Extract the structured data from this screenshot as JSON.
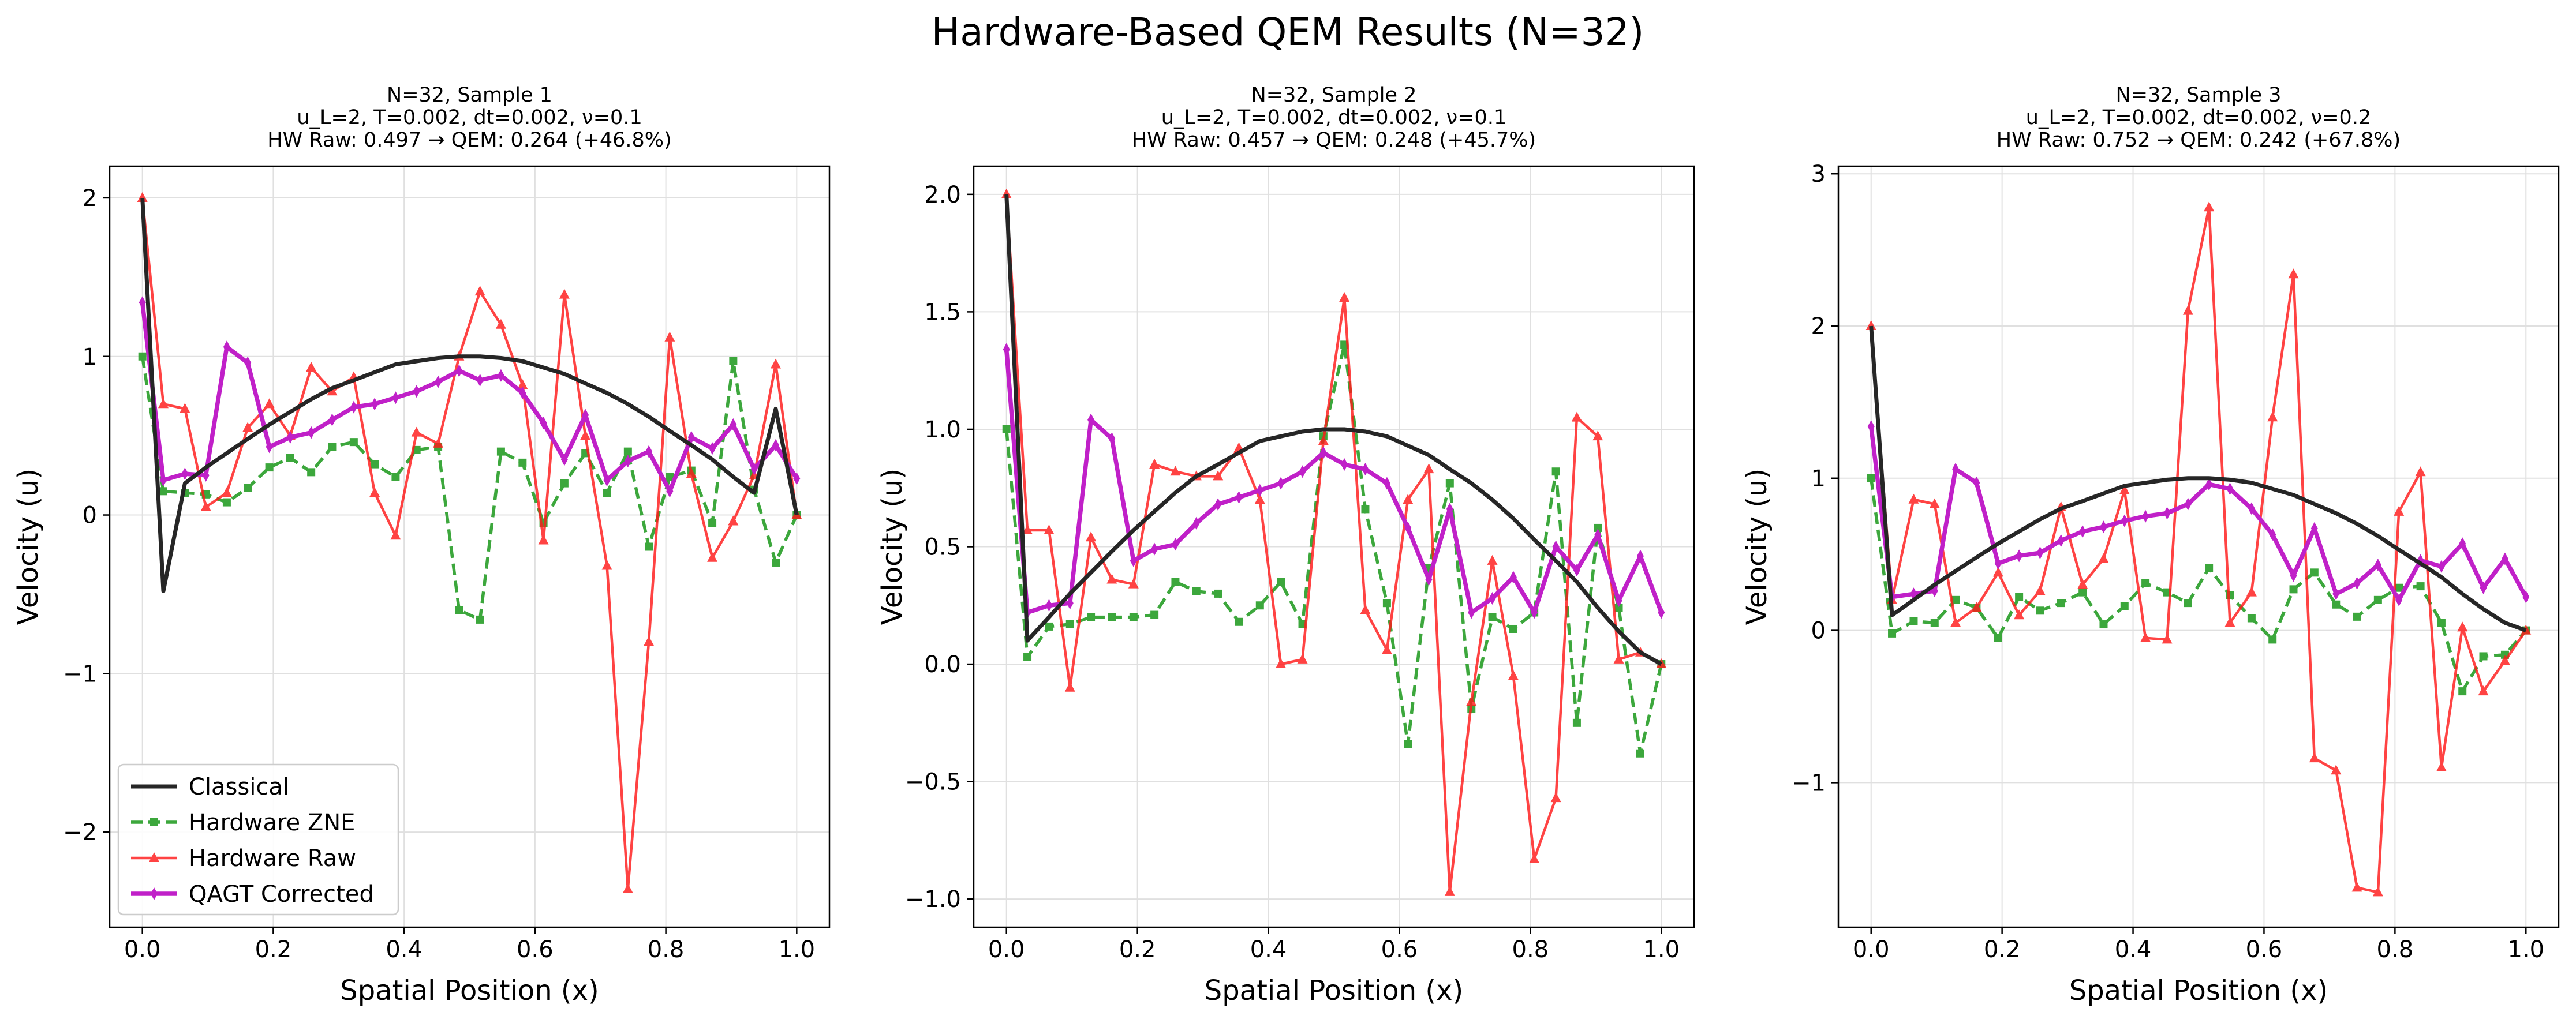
{
  "figure": {
    "suptitle": "Hardware-Based QEM Results (N=32)",
    "colors": {
      "classical": "#262626",
      "zne": "#2ca02c",
      "raw": "#ff1a1a",
      "qagt": "#c020c8",
      "grid": "#e0e0e0",
      "axis": "#000000"
    }
  },
  "legend": {
    "placement": "lower left (Sample 1)",
    "entries": [
      "Classical",
      "Hardware ZNE",
      "Hardware Raw",
      "QAGT Corrected"
    ]
  },
  "chart_data": [
    {
      "type": "line",
      "title_lines": [
        "N=32, Sample 1",
        "u_L=2, T=0.002, dt=0.002, ν=0.1",
        "HW Raw: 0.497 → QEM: 0.264 (+46.8%)"
      ],
      "xlabel": "Spatial Position (x)",
      "ylabel": "Velocity (u)",
      "xlim": [
        -0.05,
        1.05
      ],
      "ylim": [
        -2.6,
        2.2
      ],
      "xticks": [
        0.0,
        0.2,
        0.4,
        0.6,
        0.8,
        1.0
      ],
      "xtick_labels": [
        "0.0",
        "0.2",
        "0.4",
        "0.6",
        "0.8",
        "1.0"
      ],
      "yticks": [
        -2,
        -1,
        0,
        1,
        2
      ],
      "ytick_labels": [
        "−2",
        "−1",
        "0",
        "1",
        "2"
      ],
      "grid": true,
      "x": [
        0.0,
        0.032,
        0.065,
        0.097,
        0.129,
        0.161,
        0.194,
        0.226,
        0.258,
        0.29,
        0.323,
        0.355,
        0.387,
        0.419,
        0.452,
        0.484,
        0.516,
        0.548,
        0.581,
        0.613,
        0.645,
        0.677,
        0.71,
        0.742,
        0.774,
        0.806,
        0.839,
        0.871,
        0.903,
        0.935,
        0.968,
        1.0
      ],
      "series": [
        {
          "name": "Classical",
          "values": [
            2.0,
            -0.48,
            0.2,
            0.3,
            0.39,
            0.48,
            0.57,
            0.65,
            0.73,
            0.8,
            0.85,
            0.9,
            0.95,
            0.97,
            0.99,
            1.0,
            1.0,
            0.99,
            0.97,
            0.93,
            0.89,
            0.83,
            0.77,
            0.7,
            0.62,
            0.53,
            0.44,
            0.35,
            0.24,
            0.14,
            0.67,
            0.0
          ]
        },
        {
          "name": "Hardware ZNE",
          "values": [
            1.0,
            0.15,
            0.14,
            0.13,
            0.08,
            0.17,
            0.3,
            0.36,
            0.27,
            0.43,
            0.46,
            0.32,
            0.24,
            0.41,
            0.43,
            -0.6,
            -0.66,
            0.4,
            0.33,
            -0.05,
            0.2,
            0.39,
            0.14,
            0.4,
            -0.2,
            0.24,
            0.28,
            -0.05,
            0.97,
            0.16,
            -0.3,
            0.0
          ]
        },
        {
          "name": "Hardware Raw",
          "values": [
            2.0,
            0.7,
            0.67,
            0.05,
            0.14,
            0.55,
            0.7,
            0.5,
            0.93,
            0.78,
            0.87,
            0.14,
            -0.13,
            0.52,
            0.45,
            1.0,
            1.41,
            1.2,
            0.82,
            -0.16,
            1.39,
            0.5,
            -0.32,
            -2.36,
            -0.8,
            1.12,
            0.26,
            -0.27,
            -0.04,
            0.25,
            0.95,
            0.0
          ]
        },
        {
          "name": "QAGT Corrected",
          "values": [
            1.34,
            0.22,
            0.26,
            0.25,
            1.06,
            0.96,
            0.43,
            0.49,
            0.52,
            0.6,
            0.68,
            0.7,
            0.74,
            0.78,
            0.84,
            0.91,
            0.85,
            0.88,
            0.77,
            0.58,
            0.35,
            0.63,
            0.22,
            0.34,
            0.4,
            0.15,
            0.49,
            0.42,
            0.57,
            0.29,
            0.44,
            0.23
          ]
        }
      ]
    },
    {
      "type": "line",
      "title_lines": [
        "N=32, Sample 2",
        "u_L=2, T=0.002, dt=0.002, ν=0.1",
        "HW Raw: 0.457 → QEM: 0.248 (+45.7%)"
      ],
      "xlabel": "Spatial Position (x)",
      "ylabel": "Velocity (u)",
      "xlim": [
        -0.05,
        1.05
      ],
      "ylim": [
        -1.12,
        2.12
      ],
      "xticks": [
        0.0,
        0.2,
        0.4,
        0.6,
        0.8,
        1.0
      ],
      "xtick_labels": [
        "0.0",
        "0.2",
        "0.4",
        "0.6",
        "0.8",
        "1.0"
      ],
      "yticks": [
        -1.0,
        -0.5,
        0.0,
        0.5,
        1.0,
        1.5,
        2.0
      ],
      "ytick_labels": [
        "−1.0",
        "−0.5",
        "0.0",
        "0.5",
        "1.0",
        "1.5",
        "2.0"
      ],
      "grid": true,
      "x": [
        0.0,
        0.032,
        0.065,
        0.097,
        0.129,
        0.161,
        0.194,
        0.226,
        0.258,
        0.29,
        0.323,
        0.355,
        0.387,
        0.419,
        0.452,
        0.484,
        0.516,
        0.548,
        0.581,
        0.613,
        0.645,
        0.677,
        0.71,
        0.742,
        0.774,
        0.806,
        0.839,
        0.871,
        0.903,
        0.935,
        0.968,
        1.0
      ],
      "series": [
        {
          "name": "Classical",
          "values": [
            2.0,
            0.1,
            0.2,
            0.3,
            0.39,
            0.48,
            0.57,
            0.65,
            0.73,
            0.8,
            0.85,
            0.9,
            0.95,
            0.97,
            0.99,
            1.0,
            1.0,
            0.99,
            0.97,
            0.93,
            0.89,
            0.83,
            0.77,
            0.7,
            0.62,
            0.53,
            0.44,
            0.35,
            0.24,
            0.14,
            0.05,
            0.0
          ]
        },
        {
          "name": "Hardware ZNE",
          "values": [
            1.0,
            0.03,
            0.16,
            0.17,
            0.2,
            0.2,
            0.2,
            0.21,
            0.35,
            0.31,
            0.3,
            0.18,
            0.25,
            0.35,
            0.17,
            0.97,
            1.36,
            0.66,
            0.26,
            -0.34,
            0.41,
            0.77,
            -0.19,
            0.2,
            0.15,
            0.22,
            0.82,
            -0.25,
            0.58,
            0.24,
            -0.38,
            0.0
          ]
        },
        {
          "name": "Hardware Raw",
          "values": [
            2.0,
            0.57,
            0.57,
            -0.1,
            0.54,
            0.36,
            0.34,
            0.85,
            0.82,
            0.8,
            0.8,
            0.92,
            0.7,
            0.0,
            0.02,
            0.95,
            1.56,
            0.23,
            0.06,
            0.7,
            0.83,
            -0.97,
            -0.16,
            0.44,
            -0.05,
            -0.83,
            -0.57,
            1.05,
            0.97,
            0.02,
            0.05,
            0.0
          ]
        },
        {
          "name": "QAGT Corrected",
          "values": [
            1.34,
            0.22,
            0.25,
            0.26,
            1.04,
            0.96,
            0.44,
            0.49,
            0.51,
            0.6,
            0.68,
            0.71,
            0.74,
            0.77,
            0.82,
            0.9,
            0.85,
            0.83,
            0.77,
            0.58,
            0.36,
            0.66,
            0.22,
            0.28,
            0.37,
            0.22,
            0.5,
            0.4,
            0.55,
            0.27,
            0.46,
            0.22
          ]
        }
      ]
    },
    {
      "type": "line",
      "title_lines": [
        "N=32, Sample 3",
        "u_L=2, T=0.002, dt=0.002, ν=0.2",
        "HW Raw: 0.752 → QEM: 0.242 (+67.8%)"
      ],
      "xlabel": "Spatial Position (x)",
      "ylabel": "Velocity (u)",
      "xlim": [
        -0.05,
        1.05
      ],
      "ylim": [
        -1.95,
        3.05
      ],
      "xticks": [
        0.0,
        0.2,
        0.4,
        0.6,
        0.8,
        1.0
      ],
      "xtick_labels": [
        "0.0",
        "0.2",
        "0.4",
        "0.6",
        "0.8",
        "1.0"
      ],
      "yticks": [
        -1,
        0,
        1,
        2,
        3
      ],
      "ytick_labels": [
        "−1",
        "0",
        "1",
        "2",
        "3"
      ],
      "grid": true,
      "x": [
        0.0,
        0.032,
        0.065,
        0.097,
        0.129,
        0.161,
        0.194,
        0.226,
        0.258,
        0.29,
        0.323,
        0.355,
        0.387,
        0.419,
        0.452,
        0.484,
        0.516,
        0.548,
        0.581,
        0.613,
        0.645,
        0.677,
        0.71,
        0.742,
        0.774,
        0.806,
        0.839,
        0.871,
        0.903,
        0.935,
        0.968,
        1.0
      ],
      "series": [
        {
          "name": "Classical",
          "values": [
            2.0,
            0.1,
            0.2,
            0.3,
            0.39,
            0.48,
            0.57,
            0.65,
            0.73,
            0.8,
            0.85,
            0.9,
            0.95,
            0.97,
            0.99,
            1.0,
            1.0,
            0.99,
            0.97,
            0.93,
            0.89,
            0.83,
            0.77,
            0.7,
            0.62,
            0.53,
            0.44,
            0.35,
            0.24,
            0.14,
            0.05,
            0.0
          ]
        },
        {
          "name": "Hardware ZNE",
          "values": [
            1.0,
            -0.02,
            0.06,
            0.05,
            0.2,
            0.15,
            -0.05,
            0.22,
            0.13,
            0.18,
            0.25,
            0.04,
            0.16,
            0.31,
            0.25,
            0.18,
            0.41,
            0.23,
            0.08,
            -0.06,
            0.27,
            0.38,
            0.17,
            0.09,
            0.2,
            0.28,
            0.29,
            0.05,
            -0.4,
            -0.17,
            -0.16,
            0.0
          ]
        },
        {
          "name": "Hardware Raw",
          "values": [
            2.0,
            0.2,
            0.86,
            0.83,
            0.05,
            0.15,
            0.38,
            0.1,
            0.26,
            0.81,
            0.3,
            0.47,
            0.92,
            -0.05,
            -0.06,
            2.1,
            2.78,
            0.05,
            0.25,
            1.4,
            2.34,
            -0.84,
            -0.92,
            -1.69,
            -1.72,
            0.78,
            1.04,
            -0.9,
            0.02,
            -0.4,
            -0.2,
            0.0
          ]
        },
        {
          "name": "QAGT Corrected",
          "values": [
            1.34,
            0.22,
            0.24,
            0.26,
            1.06,
            0.97,
            0.44,
            0.49,
            0.51,
            0.59,
            0.65,
            0.68,
            0.72,
            0.75,
            0.77,
            0.83,
            0.96,
            0.93,
            0.8,
            0.63,
            0.36,
            0.67,
            0.24,
            0.31,
            0.43,
            0.2,
            0.46,
            0.42,
            0.57,
            0.28,
            0.47,
            0.22
          ]
        }
      ]
    }
  ]
}
